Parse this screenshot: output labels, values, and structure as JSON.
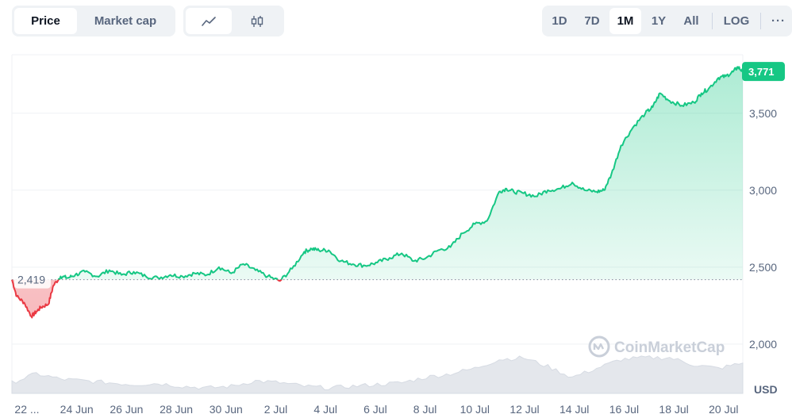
{
  "metric_tabs": {
    "price": "Price",
    "market_cap": "Market cap"
  },
  "chart_style_tabs": {
    "line": "line-chart-icon",
    "candle": "candlestick-icon"
  },
  "range_tabs": [
    "1D",
    "7D",
    "1M",
    "1Y",
    "All"
  ],
  "range_selected": "1M",
  "log_label": "LOG",
  "more_label": "···",
  "watermark": "CoinMarketCap",
  "colors": {
    "up": "#16c784",
    "down": "#ea3943",
    "grid": "#eff2f5"
  },
  "chart_data": {
    "type": "area",
    "x_tick_labels": [
      "22 ...",
      "24 Jun",
      "26 Jun",
      "28 Jun",
      "30 Jun",
      "2 Jul",
      "4 Jul",
      "6 Jul",
      "8 Jul",
      "10 Jul",
      "12 Jul",
      "14 Jul",
      "16 Jul",
      "18 Jul",
      "20 Jul"
    ],
    "y_ticks": [
      2000,
      2500,
      3000,
      3500
    ],
    "y_tick_labels": [
      "2,000",
      "2,500",
      "3,000",
      "3,500"
    ],
    "ylim": [
      1680,
      3880
    ],
    "xlim": [
      0,
      30
    ],
    "y_unit": "USD",
    "reference_value": 2419,
    "reference_label": "2,419",
    "last_value": 3771,
    "last_label": "3,771",
    "series": [
      {
        "x": [
          0,
          0.2,
          0.5,
          0.8,
          1.0,
          1.2,
          1.5,
          1.7,
          2.0,
          2.3,
          2.6,
          3.0,
          3.5,
          4.0,
          4.5,
          5.0,
          5.5,
          6.0,
          6.5,
          7.0,
          7.5,
          8.0,
          8.5,
          9.0,
          9.5,
          10.0,
          10.5,
          11.0,
          11.5,
          12.0,
          12.3,
          12.6,
          13.0,
          13.5,
          14.0,
          14.5,
          15.0,
          15.5,
          16.0,
          16.5,
          17.0,
          17.5,
          18.0,
          18.5,
          19.0,
          19.5,
          20.0,
          20.3,
          20.6,
          21.0,
          21.5,
          22.0,
          22.5,
          23.0,
          23.5,
          24.0,
          24.3,
          24.6,
          25.0,
          25.5,
          26.0,
          26.3,
          26.6,
          27.0,
          27.5,
          28.0,
          28.3,
          28.6,
          29.0,
          29.3,
          29.6,
          29.8,
          30.0
        ],
        "values": [
          2419,
          2310,
          2270,
          2180,
          2210,
          2240,
          2260,
          2380,
          2440,
          2430,
          2450,
          2470,
          2440,
          2480,
          2450,
          2470,
          2440,
          2430,
          2450,
          2440,
          2460,
          2450,
          2500,
          2460,
          2520,
          2480,
          2440,
          2410,
          2490,
          2600,
          2620,
          2610,
          2610,
          2540,
          2520,
          2510,
          2530,
          2560,
          2590,
          2540,
          2560,
          2610,
          2630,
          2720,
          2780,
          2800,
          2990,
          3010,
          2990,
          2980,
          2960,
          3000,
          3010,
          3050,
          3000,
          2990,
          3000,
          3100,
          3290,
          3410,
          3500,
          3540,
          3630,
          3580,
          3550,
          3570,
          3630,
          3660,
          3730,
          3740,
          3770,
          3800,
          3771
        ]
      }
    ]
  },
  "volume_data": {
    "x": [
      0,
      1,
      2,
      3,
      4,
      5,
      6,
      7,
      8,
      9,
      10,
      11,
      12,
      13,
      14,
      15,
      16,
      17,
      18,
      19,
      20,
      21,
      22,
      23,
      24,
      25,
      26,
      27,
      28,
      29,
      30
    ],
    "values": [
      0.3,
      0.55,
      0.4,
      0.35,
      0.3,
      0.25,
      0.28,
      0.2,
      0.15,
      0.2,
      0.35,
      0.3,
      0.2,
      0.15,
      0.2,
      0.25,
      0.3,
      0.45,
      0.55,
      0.7,
      0.95,
      1.0,
      0.75,
      0.45,
      0.7,
      0.95,
      1.0,
      1.0,
      0.8,
      0.7,
      0.85
    ]
  }
}
